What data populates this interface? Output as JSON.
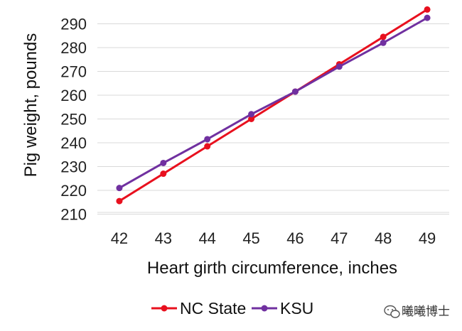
{
  "chart_data": {
    "type": "line",
    "title": "",
    "xlabel": "Heart girth circumference, inches",
    "ylabel": "Pig weight, pounds",
    "x": [
      42,
      43,
      44,
      45,
      46,
      47,
      48,
      49
    ],
    "xlim": [
      41.5,
      49.5
    ],
    "ylim": [
      200,
      300
    ],
    "yticks": [
      210,
      220,
      230,
      240,
      250,
      260,
      270,
      280,
      290
    ],
    "grid": true,
    "legend_position": "bottom",
    "series": [
      {
        "name": "NC State",
        "color": "#e8101e",
        "values": [
          215.5,
          227,
          238.5,
          250,
          261.5,
          273,
          284.5,
          296
        ]
      },
      {
        "name": "KSU",
        "color": "#7030a0",
        "values": [
          221,
          231.5,
          241.5,
          252,
          261.5,
          272,
          282,
          292.5
        ]
      }
    ]
  },
  "watermark": {
    "text": "曦曦博士",
    "icon": "wechat-icon"
  }
}
